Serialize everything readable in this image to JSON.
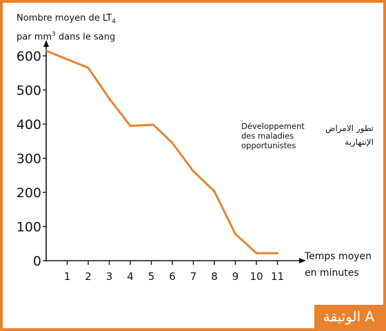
{
  "chart_data": {
    "type": "line",
    "ylabel_line1": "Nombre moyen de LT",
    "ylabel_sub": "4",
    "ylabel_line2_pre": "par mm",
    "ylabel_sup": "3",
    "ylabel_line2_post": " dans le sang",
    "xlabel_line1": "Temps moyen",
    "xlabel_line2": "en minutes",
    "ylim": [
      0,
      650
    ],
    "xlim": [
      0,
      11.3
    ],
    "yticks": [
      0,
      100,
      200,
      300,
      400,
      500,
      600
    ],
    "xticks": [
      1,
      2,
      3,
      4,
      5,
      6,
      7,
      8,
      9,
      10,
      11
    ],
    "grid": false,
    "line_color": "#e8822f",
    "series": [
      {
        "x": [
          0,
          2,
          3,
          4,
          5.1,
          6,
          7,
          8,
          9,
          10,
          11
        ],
        "values": [
          615,
          565,
          475,
          395,
          398,
          345,
          262,
          203,
          78,
          22,
          22
        ]
      }
    ]
  },
  "annotation": {
    "fr_line1": "Développement",
    "fr_line2": "des maladies",
    "fr_line3": "opportunistes",
    "ar_line1": "تطور الامراض",
    "ar_line2": "الإنتهازية"
  },
  "badge": {
    "text": "الوثيقة A",
    "color": "#e8822f"
  }
}
